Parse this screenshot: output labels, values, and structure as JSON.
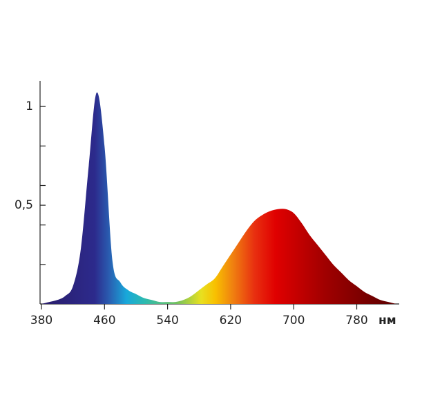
{
  "chart_data": {
    "type": "area",
    "x_label": "нм",
    "x": [
      380,
      390,
      400,
      410,
      420,
      430,
      440,
      450,
      460,
      470,
      480,
      490,
      500,
      510,
      520,
      530,
      540,
      550,
      560,
      570,
      580,
      590,
      600,
      610,
      620,
      630,
      640,
      650,
      660,
      670,
      680,
      690,
      700,
      710,
      720,
      730,
      740,
      750,
      760,
      770,
      780,
      790,
      800,
      810,
      820,
      830
    ],
    "values": [
      0.0,
      0.01,
      0.02,
      0.04,
      0.09,
      0.28,
      0.7,
      1.07,
      0.8,
      0.22,
      0.11,
      0.07,
      0.05,
      0.03,
      0.02,
      0.01,
      0.01,
      0.01,
      0.02,
      0.04,
      0.07,
      0.1,
      0.13,
      0.19,
      0.25,
      0.31,
      0.37,
      0.42,
      0.45,
      0.47,
      0.48,
      0.48,
      0.46,
      0.41,
      0.35,
      0.3,
      0.25,
      0.2,
      0.16,
      0.12,
      0.09,
      0.06,
      0.04,
      0.02,
      0.01,
      0.0
    ],
    "xlim": [
      380,
      833
    ],
    "xticks": [
      380,
      460,
      540,
      620,
      700,
      780
    ],
    "ylim": [
      0,
      1.13
    ],
    "yticks": [
      {
        "value": 0.5,
        "label": "0,5"
      },
      1
    ],
    "yminorticks": [
      0.2,
      0.4,
      0.6,
      0.8
    ]
  }
}
